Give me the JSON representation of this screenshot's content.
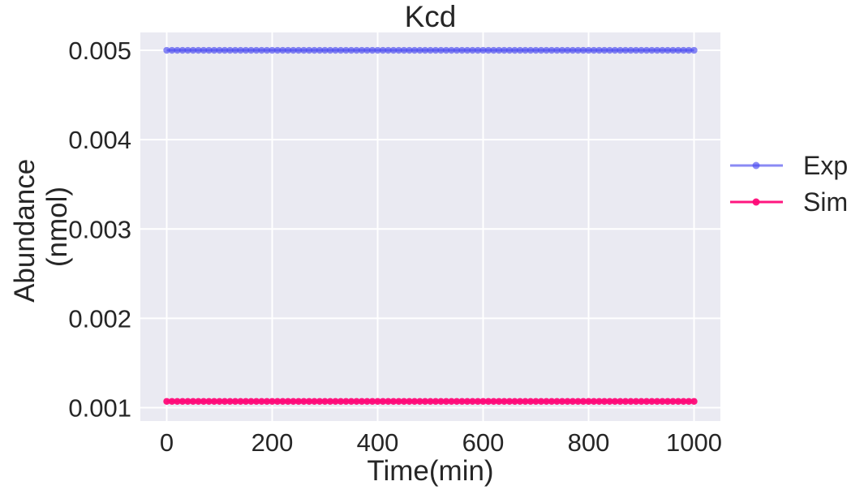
{
  "chart_data": {
    "type": "line",
    "title": "Kcd",
    "xlabel": "Time(min)",
    "ylabel_lines": [
      "Abundance",
      "(nmol)"
    ],
    "xlim": [
      -50,
      1050
    ],
    "ylim": [
      0.00085,
      0.0052
    ],
    "xticks": [
      0,
      200,
      400,
      600,
      800,
      1000
    ],
    "xtick_labels": [
      "0",
      "200",
      "400",
      "600",
      "800",
      "1000"
    ],
    "yticks": [
      0.001,
      0.002,
      0.003,
      0.004,
      0.005
    ],
    "ytick_labels": [
      "0.001",
      "0.002",
      "0.003",
      "0.004",
      "0.005"
    ],
    "grid": true,
    "legend_position": "outside-right",
    "x": {
      "start": 0,
      "end": 1000,
      "step": 10
    },
    "series": [
      {
        "name": "Exp",
        "constant_value": 0.005,
        "color": "#4b4bf0",
        "opacity": 0.65
      },
      {
        "name": "Sim",
        "constant_value": 0.00107,
        "color": "#ff0a78",
        "opacity": 0.95
      }
    ],
    "background_color": "#eaeaf2",
    "grid_color": "#ffffff"
  }
}
